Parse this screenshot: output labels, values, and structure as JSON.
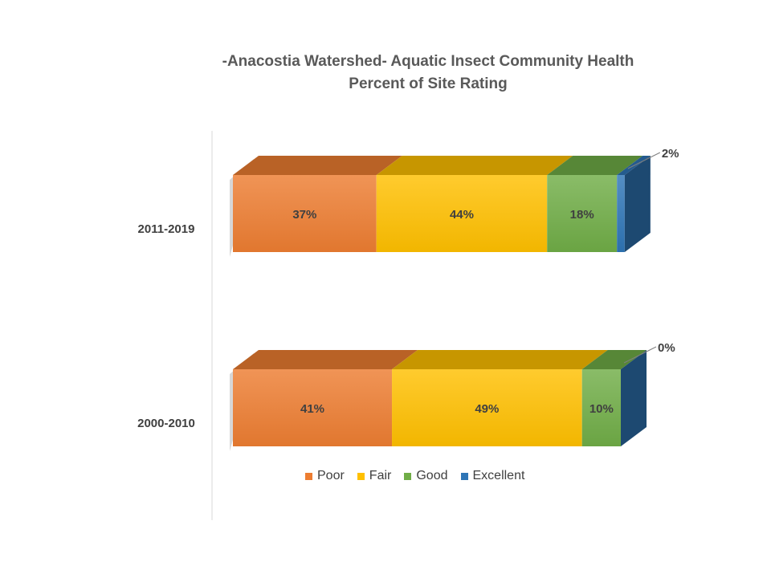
{
  "chart_data": {
    "type": "bar",
    "orientation": "horizontal",
    "stacked": true,
    "percent_stacked": true,
    "three_d": true,
    "title": "-Anacostia Watershed- Aquatic Insect Community Health",
    "subtitle": "Percent of Site Rating",
    "categories": [
      "2011-2019",
      "2000-2010"
    ],
    "series": [
      {
        "name": "Poor",
        "color": "#ED7D31",
        "values": [
          37,
          41
        ]
      },
      {
        "name": "Fair",
        "color": "#FFC000",
        "values": [
          44,
          49
        ]
      },
      {
        "name": "Good",
        "color": "#70AD47",
        "values": [
          18,
          10
        ]
      },
      {
        "name": "Excellent",
        "color": "#2E75B6",
        "values": [
          2,
          0
        ]
      }
    ],
    "data_labels": [
      [
        "37%",
        "44%",
        "18%",
        "2%"
      ],
      [
        "41%",
        "49%",
        "10%",
        "0%"
      ]
    ],
    "xlim": [
      0,
      100
    ],
    "legend_position": "bottom",
    "grid": false
  }
}
